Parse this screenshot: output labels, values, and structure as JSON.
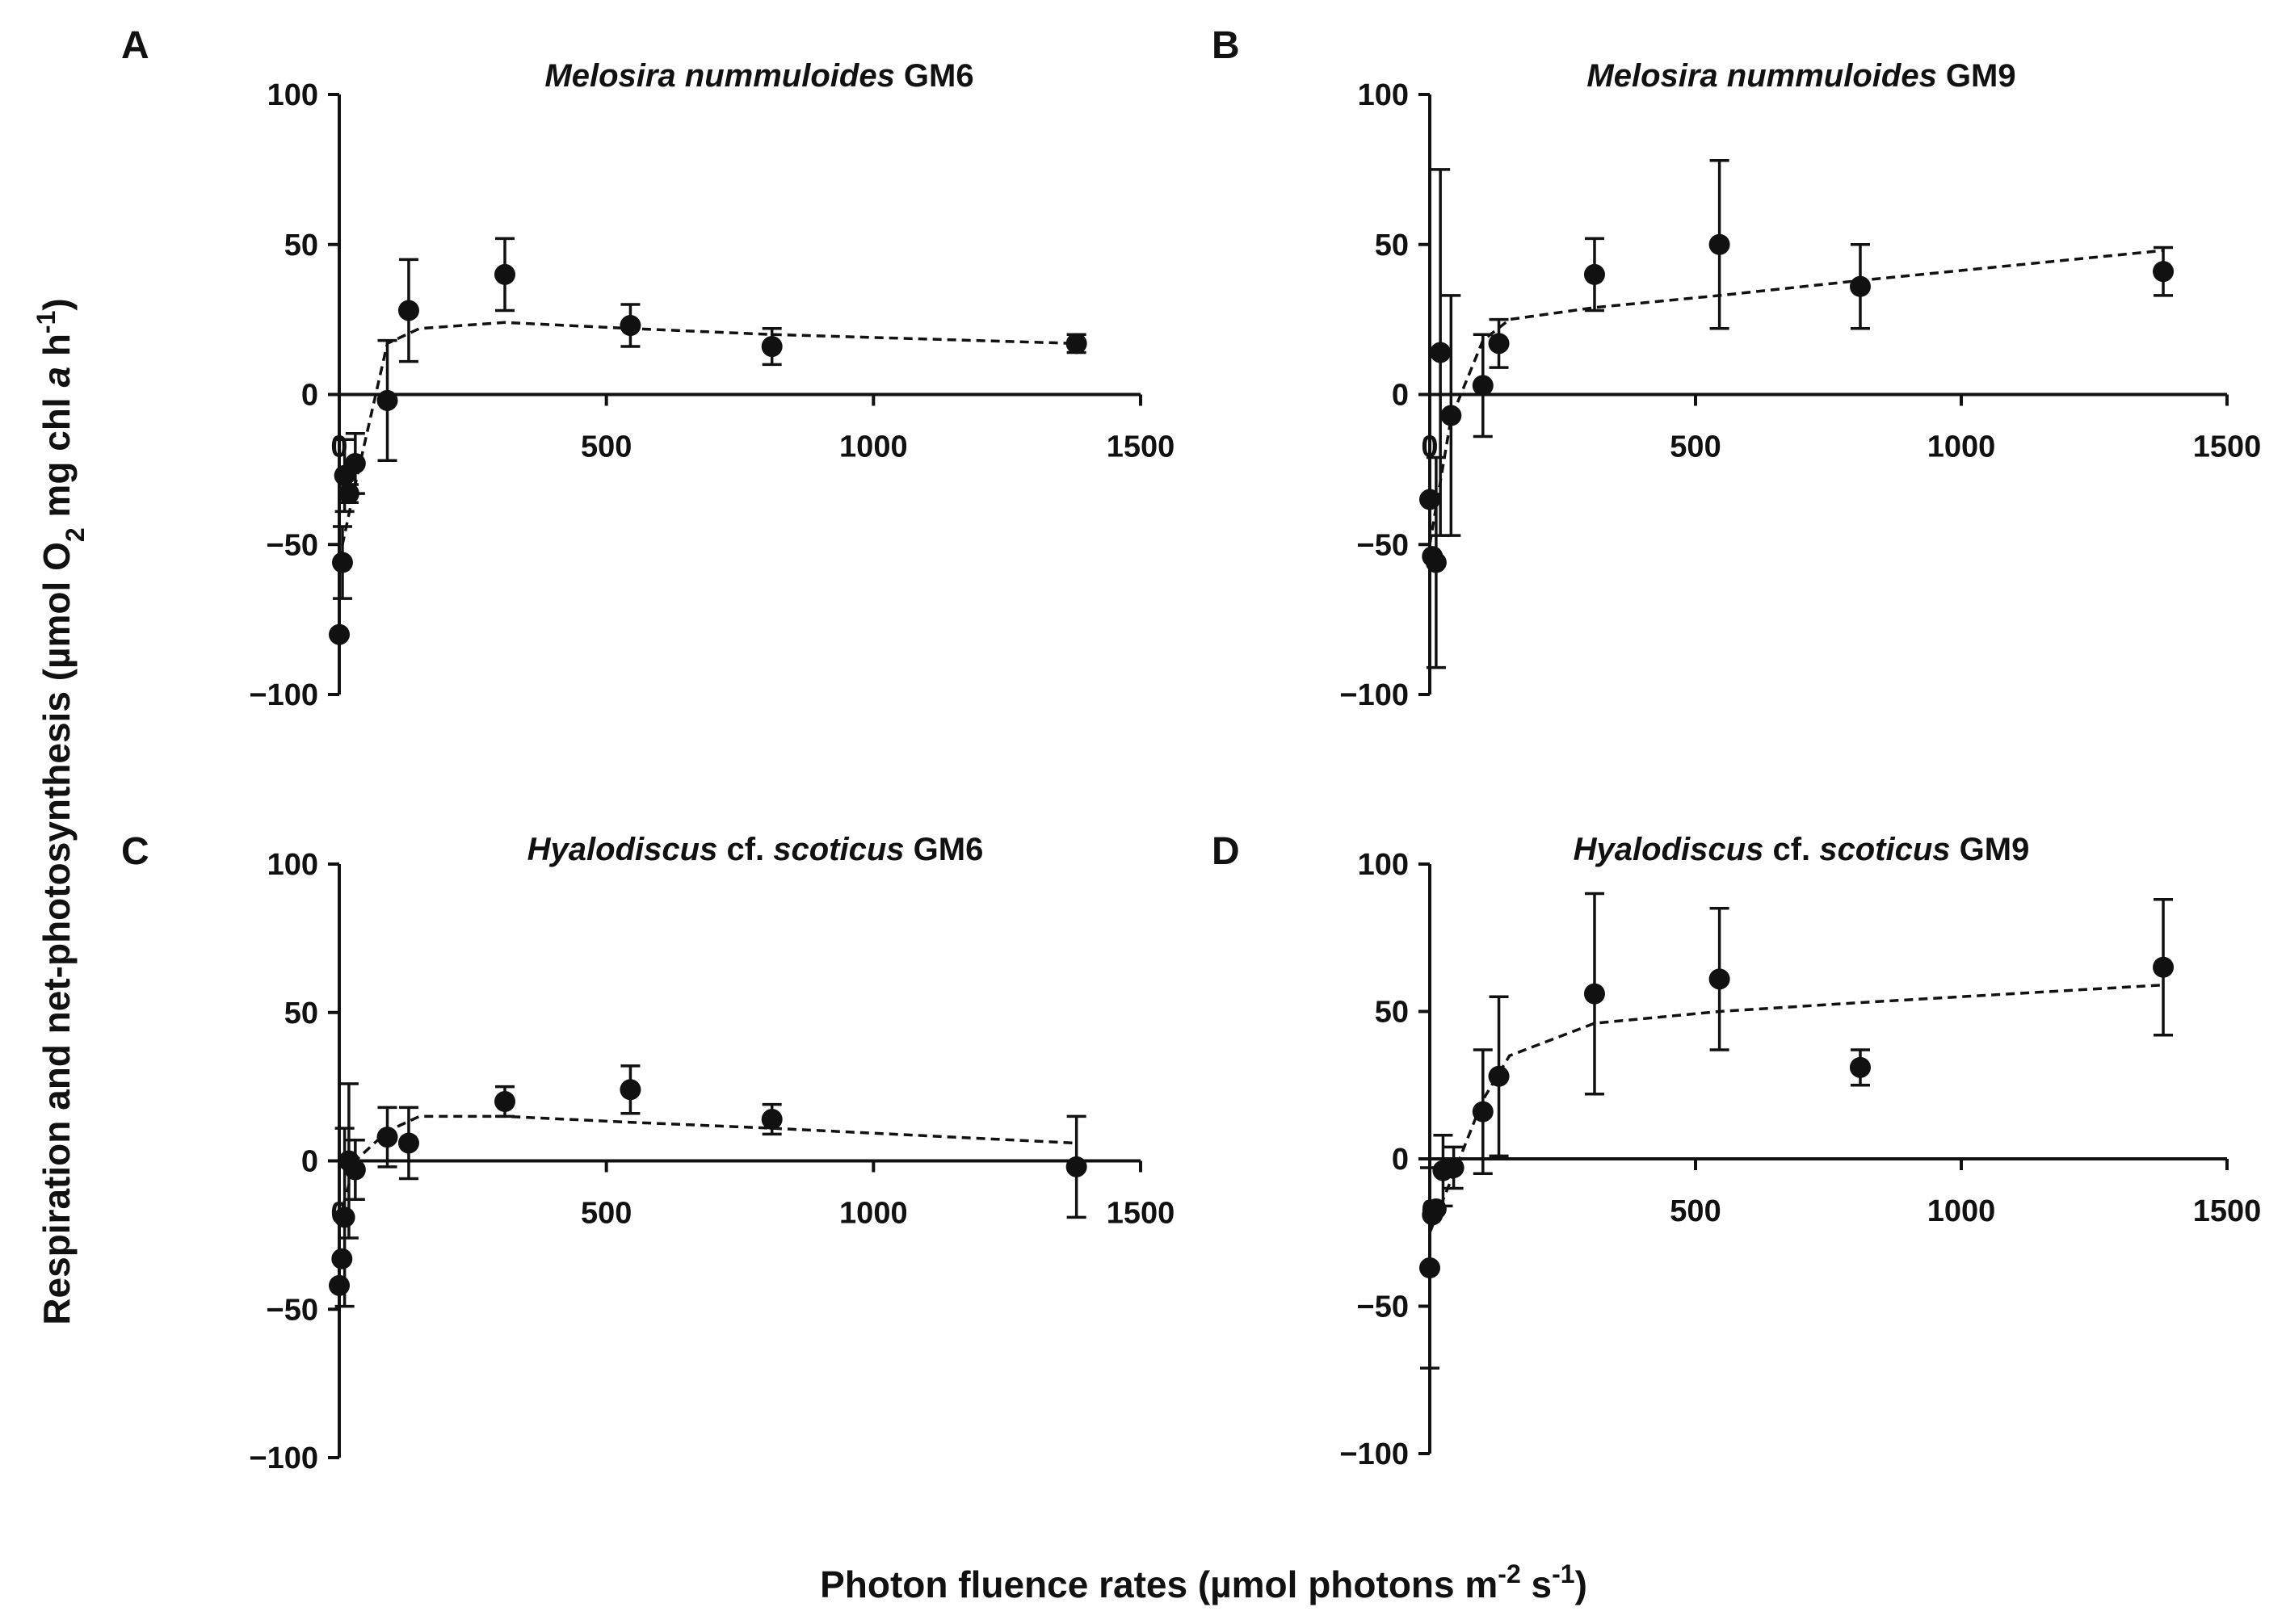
{
  "y_axis_label": {
    "main": "Respiration and net-photosynthesis (µmol O",
    "sub2": "2",
    "mid": " mg chl ",
    "italic": "a",
    "end": " h",
    "sup": "-1",
    "close": ")"
  },
  "x_axis_label": {
    "main": "Photon fluence rates (µmol photons m",
    "sup1": "-2",
    "mid": " s",
    "sup2": "-1",
    "close": ")"
  },
  "chart_data": [
    {
      "panel": "A",
      "type": "scatter",
      "title_italic": "Melosira nummuloides",
      "title_plain": " GM6",
      "xlim": [
        0,
        1500
      ],
      "ylim": [
        -100,
        100
      ],
      "xticks": [
        0,
        500,
        1000,
        1500
      ],
      "yticks": [
        -100,
        -50,
        0,
        50,
        100
      ],
      "points": [
        {
          "x": 0,
          "y": -80,
          "err": 0
        },
        {
          "x": 6,
          "y": -56,
          "err": 12
        },
        {
          "x": 10,
          "y": -27,
          "err": 12
        },
        {
          "x": 18,
          "y": -33,
          "err": 3
        },
        {
          "x": 30,
          "y": -23,
          "err": 10
        },
        {
          "x": 90,
          "y": -2,
          "err": 20
        },
        {
          "x": 130,
          "y": 28,
          "err": 17
        },
        {
          "x": 310,
          "y": 40,
          "err": 12
        },
        {
          "x": 545,
          "y": 23,
          "err": 7
        },
        {
          "x": 810,
          "y": 16,
          "err": 6
        },
        {
          "x": 1380,
          "y": 17,
          "err": 3
        }
      ],
      "fit": [
        [
          0,
          -55
        ],
        [
          30,
          -30
        ],
        [
          90,
          17
        ],
        [
          150,
          22
        ],
        [
          310,
          24
        ],
        [
          545,
          22
        ],
        [
          810,
          20
        ],
        [
          1380,
          17
        ]
      ]
    },
    {
      "panel": "B",
      "type": "scatter",
      "title_italic": "Melosira nummuloides",
      "title_plain": " GM9",
      "xlim": [
        0,
        1500
      ],
      "ylim": [
        -100,
        100
      ],
      "xticks": [
        0,
        500,
        1000,
        1500
      ],
      "yticks": [
        -100,
        -50,
        0,
        50,
        100
      ],
      "points": [
        {
          "x": 0,
          "y": -35,
          "err": 0
        },
        {
          "x": 5,
          "y": -54,
          "err": 0
        },
        {
          "x": 12,
          "y": -56,
          "err": 35
        },
        {
          "x": 20,
          "y": 14,
          "err": 61
        },
        {
          "x": 40,
          "y": -7,
          "err": 40
        },
        {
          "x": 100,
          "y": 3,
          "err": 17
        },
        {
          "x": 130,
          "y": 17,
          "err": 8
        },
        {
          "x": 310,
          "y": 40,
          "err": 12
        },
        {
          "x": 545,
          "y": 50,
          "err": 28
        },
        {
          "x": 810,
          "y": 36,
          "err": 14
        },
        {
          "x": 1380,
          "y": 41,
          "err": 8
        }
      ],
      "fit": [
        [
          0,
          -50
        ],
        [
          40,
          -8
        ],
        [
          100,
          18
        ],
        [
          150,
          25
        ],
        [
          310,
          29
        ],
        [
          545,
          33
        ],
        [
          810,
          38
        ],
        [
          1380,
          48
        ]
      ]
    },
    {
      "panel": "C",
      "type": "scatter",
      "title_italic": "Hyalodiscus",
      "title_mid": " cf. ",
      "title_italic2": "scoticus",
      "title_plain": " GM6",
      "xlim": [
        0,
        1500
      ],
      "ylim": [
        -100,
        100
      ],
      "xticks": [
        0,
        500,
        1000,
        1500
      ],
      "yticks": [
        -100,
        -50,
        0,
        50,
        100
      ],
      "points": [
        {
          "x": 0,
          "y": -42,
          "err": 0
        },
        {
          "x": 5,
          "y": -33,
          "err": 0
        },
        {
          "x": 10,
          "y": -19,
          "err": 30
        },
        {
          "x": 18,
          "y": 0,
          "err": 26
        },
        {
          "x": 30,
          "y": -3,
          "err": 10
        },
        {
          "x": 90,
          "y": 8,
          "err": 10
        },
        {
          "x": 130,
          "y": 6,
          "err": 12
        },
        {
          "x": 310,
          "y": 20,
          "err": 5
        },
        {
          "x": 545,
          "y": 24,
          "err": 8
        },
        {
          "x": 810,
          "y": 14,
          "err": 5
        },
        {
          "x": 1380,
          "y": -2,
          "err": 17
        }
      ],
      "fit": [
        [
          0,
          -20
        ],
        [
          30,
          0
        ],
        [
          90,
          10
        ],
        [
          150,
          15
        ],
        [
          310,
          15
        ],
        [
          545,
          13
        ],
        [
          810,
          11
        ],
        [
          1380,
          6
        ]
      ]
    },
    {
      "panel": "D",
      "type": "scatter",
      "title_italic": "Hyalodiscus",
      "title_mid": " cf. ",
      "title_italic2": "scoticus",
      "title_plain": " GM9",
      "xlim": [
        0,
        1500
      ],
      "ylim": [
        -100,
        100
      ],
      "xticks": [
        0,
        500,
        1000,
        1500
      ],
      "yticks": [
        -100,
        -50,
        0,
        50,
        100
      ],
      "points": [
        {
          "x": 0,
          "y": -37,
          "err": 34
        },
        {
          "x": 5,
          "y": -19,
          "err": 0
        },
        {
          "x": 12,
          "y": -17,
          "err": 0
        },
        {
          "x": 25,
          "y": -4,
          "err": 12
        },
        {
          "x": 45,
          "y": -3,
          "err": 7
        },
        {
          "x": 100,
          "y": 16,
          "err": 21
        },
        {
          "x": 130,
          "y": 28,
          "err": 27
        },
        {
          "x": 310,
          "y": 56,
          "err": 34
        },
        {
          "x": 545,
          "y": 61,
          "err": 24
        },
        {
          "x": 810,
          "y": 31,
          "err": 6
        },
        {
          "x": 1380,
          "y": 65,
          "err": 23
        }
      ],
      "fit": [
        [
          0,
          -25
        ],
        [
          45,
          -5
        ],
        [
          100,
          20
        ],
        [
          150,
          35
        ],
        [
          310,
          46
        ],
        [
          545,
          50
        ],
        [
          810,
          53
        ],
        [
          1380,
          59
        ]
      ]
    }
  ]
}
